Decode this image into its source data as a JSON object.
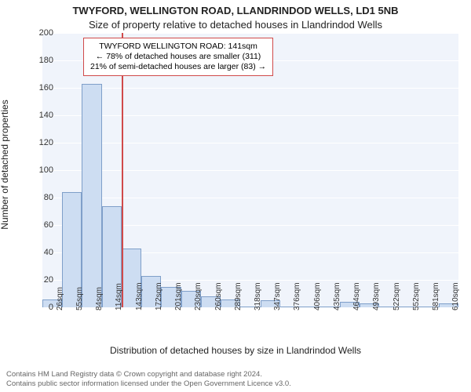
{
  "titles": {
    "line1": "TWYFORD, WELLINGTON ROAD, LLANDRINDOD WELLS, LD1 5NB",
    "line2": "Size of property relative to detached houses in Llandrindod Wells"
  },
  "ylabel": "Number of detached properties",
  "xlabel": "Distribution of detached houses by size in Llandrindod Wells",
  "chart": {
    "type": "histogram",
    "ylim": [
      0,
      200
    ],
    "ytick_step": 20,
    "plot_bg": "#f0f4fb",
    "grid_color": "#ffffff",
    "bar_fill": "#cdddf2",
    "bar_stroke": "#7f9fc9",
    "xlabels": [
      "26sqm",
      "55sqm",
      "84sqm",
      "114sqm",
      "143sqm",
      "172sqm",
      "201sqm",
      "230sqm",
      "260sqm",
      "289sqm",
      "318sqm",
      "347sqm",
      "376sqm",
      "406sqm",
      "435sqm",
      "464sqm",
      "493sqm",
      "522sqm",
      "552sqm",
      "581sqm",
      "610sqm"
    ],
    "values": [
      6,
      84,
      163,
      74,
      43,
      23,
      15,
      12,
      8,
      6,
      0,
      5,
      0,
      0,
      0,
      4,
      3,
      0,
      0,
      0,
      3
    ]
  },
  "marker": {
    "position_index": 4.0,
    "color": "#d04a4a"
  },
  "annotation": {
    "line1": "TWYFORD WELLINGTON ROAD: 141sqm",
    "line2": "← 78% of detached houses are smaller (311)",
    "line3": "21% of semi-detached houses are larger (83) →",
    "border_color": "#d04a4a",
    "bg": "#ffffff"
  },
  "footer": {
    "line1": "Contains HM Land Registry data © Crown copyright and database right 2024.",
    "line2": "Contains public sector information licensed under the Open Government Licence v3.0."
  }
}
